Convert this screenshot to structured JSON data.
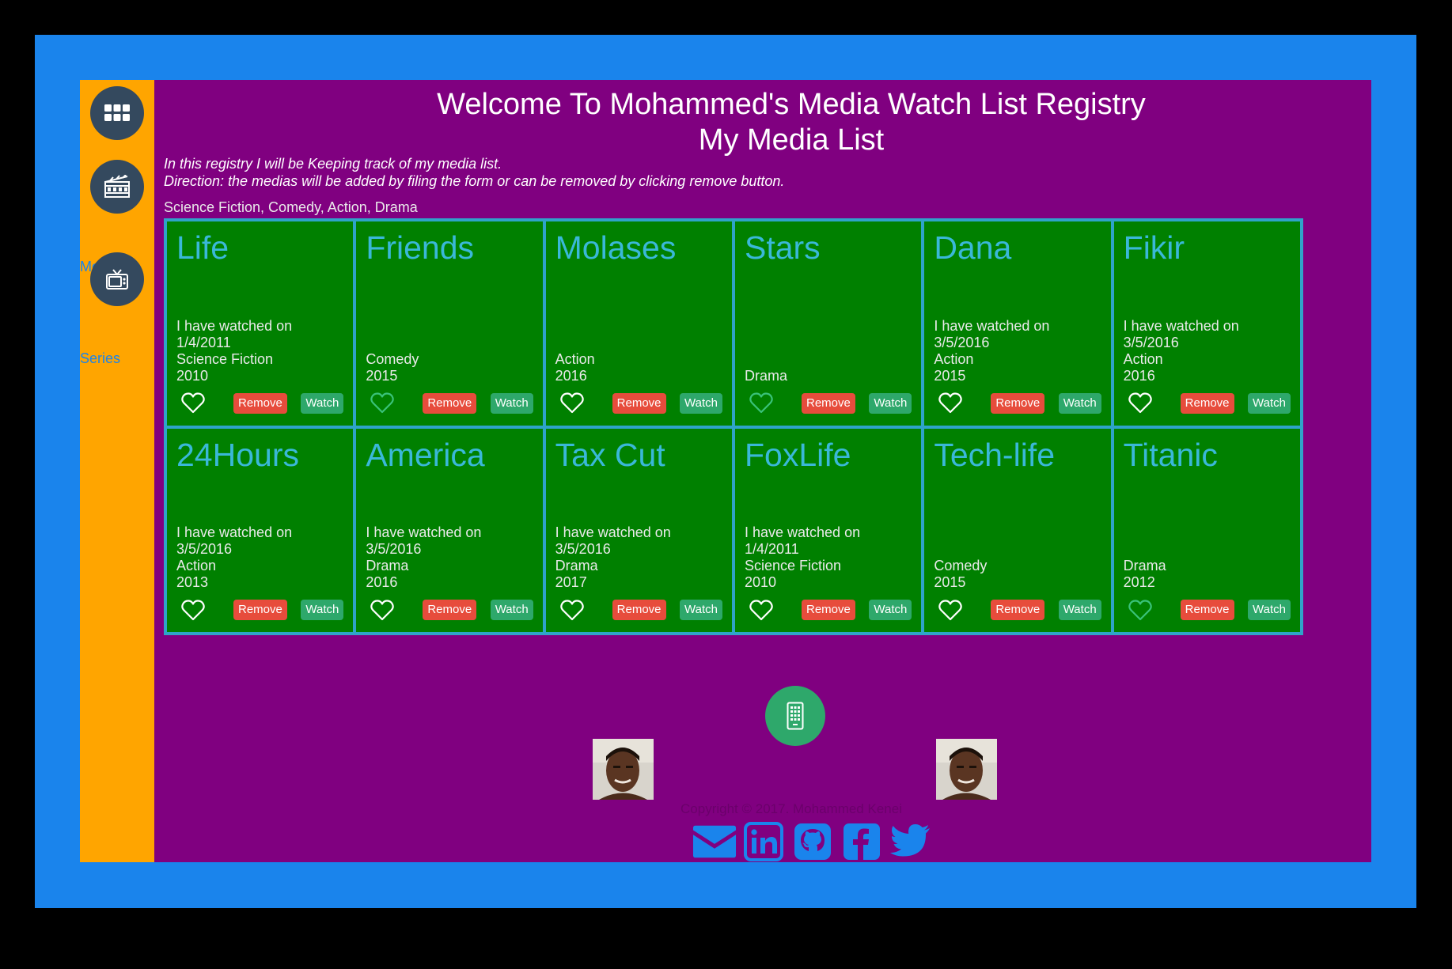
{
  "header": {
    "title_line1": "Welcome To Mohammed's Media Watch List Registry",
    "title_line2": "My Media List",
    "intro_line1": "In this registry I will be Keeping track of my media list.",
    "intro_line2": "Direction: the medias will be added by filing the form or can be removed by clicking remove button.",
    "genres": "Science Fiction, Comedy, Action, Drama"
  },
  "sidebar": {
    "movies_label": "Movies",
    "series_label": "Series"
  },
  "buttons": {
    "remove": "Remove",
    "watch": "Watch"
  },
  "cards": [
    {
      "title": "Life",
      "watched": "I have watched on",
      "date": "1/4/2011",
      "genre": "Science Fiction",
      "year": "2010",
      "liked": false
    },
    {
      "title": "Friends",
      "watched": "",
      "date": "",
      "genre": "Comedy",
      "year": "2015",
      "liked": true
    },
    {
      "title": "Molases",
      "watched": "",
      "date": "",
      "genre": "Action",
      "year": "2016",
      "liked": false
    },
    {
      "title": "Stars",
      "watched": "",
      "date": "",
      "genre": "",
      "year": "Drama",
      "liked": true
    },
    {
      "title": "Dana",
      "watched": "I have watched on",
      "date": "3/5/2016",
      "genre": "Action",
      "year": "2015",
      "liked": false
    },
    {
      "title": "Fikir",
      "watched": "I have watched on",
      "date": "3/5/2016",
      "genre": "Action",
      "year": "2016",
      "liked": false
    },
    {
      "title": "24Hours",
      "watched": "I have watched on",
      "date": "3/5/2016",
      "genre": "Action",
      "year": "2013",
      "liked": false
    },
    {
      "title": "America",
      "watched": "I have watched on",
      "date": "3/5/2016",
      "genre": "Drama",
      "year": "2016",
      "liked": false
    },
    {
      "title": "Tax Cut",
      "watched": "I have watched on",
      "date": "3/5/2016",
      "genre": "Drama",
      "year": "2017",
      "liked": false
    },
    {
      "title": "FoxLife",
      "watched": "I have watched on",
      "date": "1/4/2011",
      "genre": "Science Fiction",
      "year": "2010",
      "liked": false
    },
    {
      "title": "Tech-life",
      "watched": "",
      "date": "",
      "genre": "Comedy",
      "year": "2015",
      "liked": false
    },
    {
      "title": "Titanic",
      "watched": "",
      "date": "",
      "genre": "Drama",
      "year": "2012",
      "liked": true
    }
  ],
  "footer": {
    "copyright": "Copyright © 2017. Mohammed Kenei"
  },
  "colors": {
    "frame": "#1a84ec",
    "panel": "#800080",
    "sidebar": "#ffa500",
    "card": "#008000",
    "card_title": "#3ab8d8",
    "remove": "#e74c3c",
    "watch": "#2ea86b"
  },
  "icons": [
    "grid-icon",
    "film-icon",
    "tv-icon",
    "heart-icon",
    "phone-icon",
    "email-icon",
    "linkedin-icon",
    "github-icon",
    "facebook-icon",
    "twitter-icon"
  ]
}
